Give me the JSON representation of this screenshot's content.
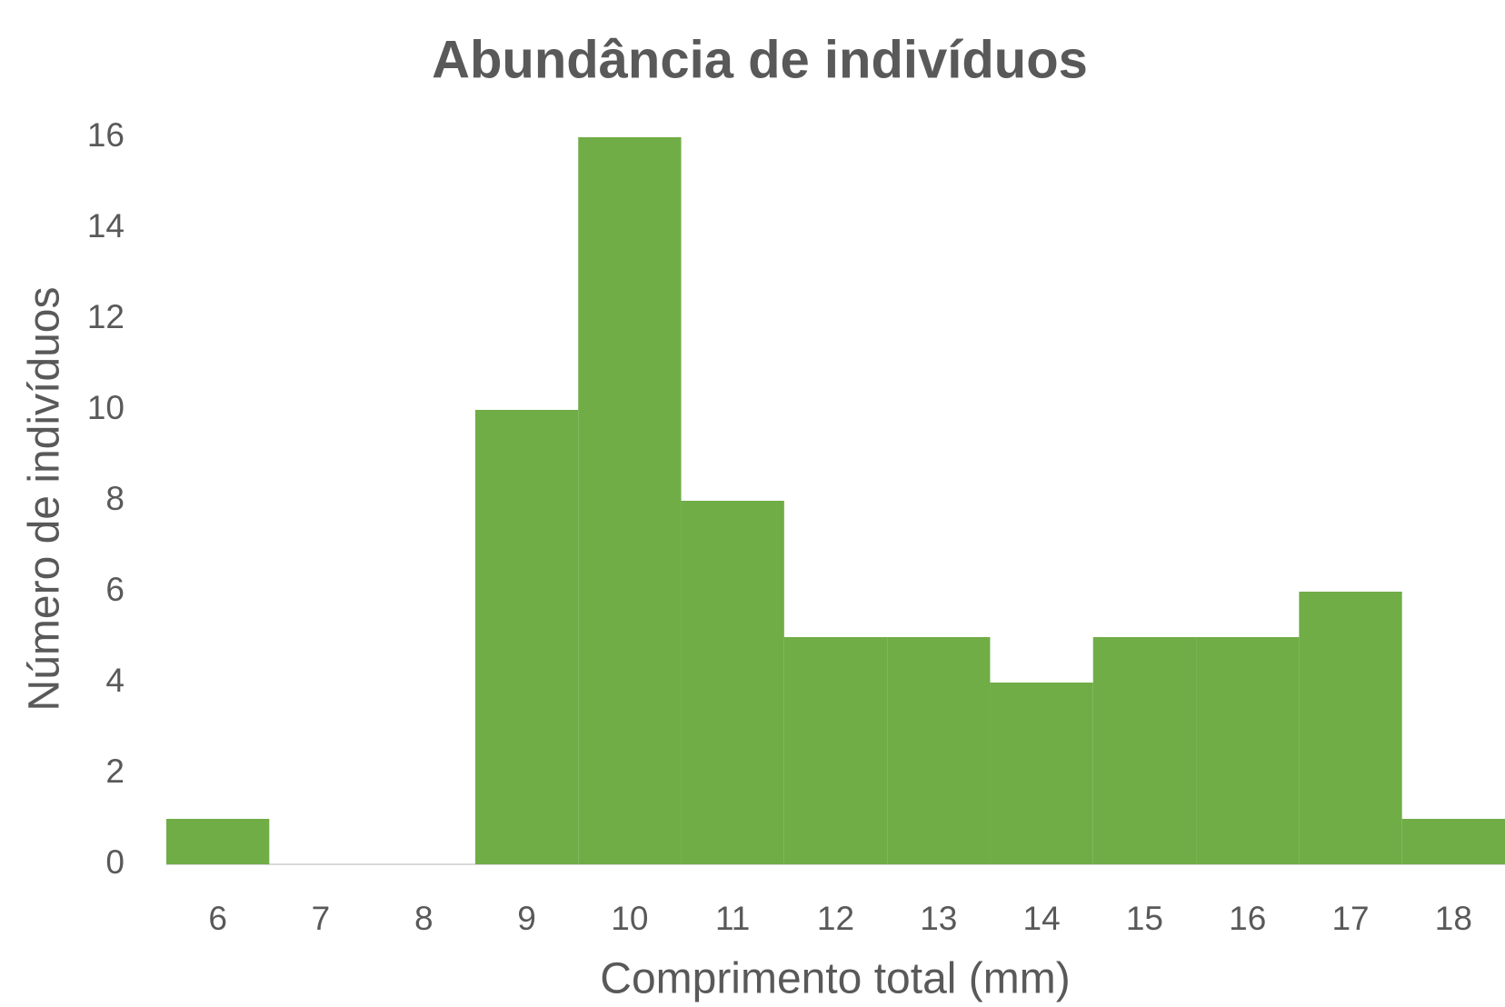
{
  "chart_data": {
    "type": "bar",
    "title": "Abundância de indivíduos",
    "x_label": "Comprimento total (mm)",
    "y_label": "Número de indivíduos",
    "categories": [
      6,
      7,
      8,
      9,
      10,
      11,
      12,
      13,
      14,
      15,
      16,
      17,
      18
    ],
    "values": [
      1,
      0,
      0,
      10,
      16,
      8,
      5,
      5,
      4,
      5,
      5,
      6,
      1
    ],
    "color": "#70ad47",
    "ylim": [
      0,
      16
    ],
    "yticks": [
      0,
      2,
      4,
      6,
      8,
      10,
      12,
      14,
      16
    ],
    "grid": false
  }
}
